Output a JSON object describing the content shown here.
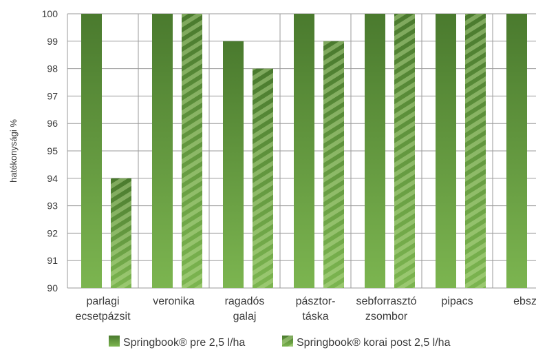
{
  "chart_data": {
    "type": "bar",
    "title": "",
    "xlabel": "",
    "ylabel": "hatékonysági %",
    "ylim": [
      90,
      100
    ],
    "yticks": [
      90,
      91,
      92,
      93,
      94,
      95,
      96,
      97,
      98,
      99,
      100
    ],
    "grid": "horizontal",
    "legend_position": "bottom",
    "categories": [
      [
        "parlagi",
        "ecsetpázsit"
      ],
      [
        "veronika"
      ],
      [
        "ragadós",
        "galaj"
      ],
      [
        "pásztor-",
        "táska"
      ],
      [
        "sebforrasztó",
        "zsombor"
      ],
      [
        "pipacs"
      ],
      [
        "ebszé"
      ]
    ],
    "series": [
      {
        "name": "Springbook® pre 2,5 l/ha",
        "pattern": "solid",
        "values": [
          100,
          100,
          99,
          100,
          100,
          100,
          100
        ]
      },
      {
        "name": "Springbook® korai post 2,5 l/ha",
        "pattern": "striped",
        "values": [
          94,
          100,
          98,
          99,
          100,
          100,
          null
        ]
      }
    ],
    "colors": {
      "bar_top": "#4a7a2e",
      "bar_bottom": "#7cb550",
      "stripe": "#9fcc70",
      "grid": "#9a9a9a"
    }
  }
}
